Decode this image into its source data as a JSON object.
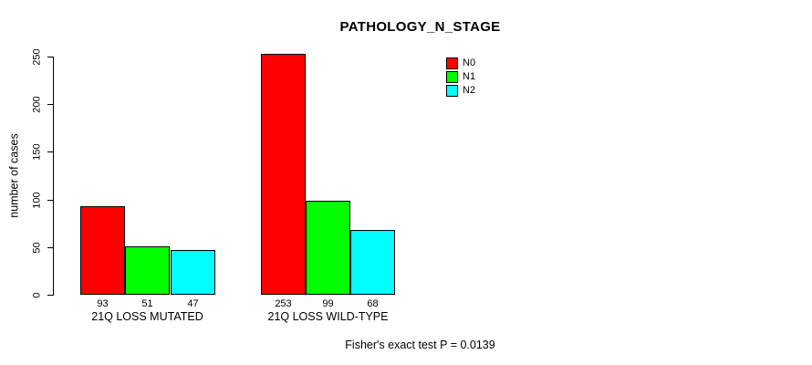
{
  "title": "PATHOLOGY_N_STAGE",
  "footnote": "Fisher's exact test P = 0.0139",
  "y_axis": {
    "label": "number of cases",
    "ticks": [
      0,
      50,
      100,
      150,
      200,
      250
    ]
  },
  "legend": {
    "position": "top-right-inside",
    "items": [
      {
        "label": "N0",
        "color": "#ff0000"
      },
      {
        "label": "N1",
        "color": "#00ff00"
      },
      {
        "label": "N2",
        "color": "#00ffff"
      }
    ]
  },
  "chart_data": {
    "type": "bar",
    "title": "PATHOLOGY_N_STAGE",
    "xlabel": "",
    "ylabel": "number of cases",
    "categories": [
      "21Q LOSS MUTATED",
      "21Q LOSS WILD-TYPE"
    ],
    "series": [
      {
        "name": "N0",
        "color": "#ff0000",
        "values": [
          93,
          253
        ]
      },
      {
        "name": "N1",
        "color": "#00ff00",
        "values": [
          51,
          99
        ]
      },
      {
        "name": "N2",
        "color": "#00ffff",
        "values": [
          47,
          68
        ]
      }
    ],
    "ylim": [
      0,
      250
    ],
    "yticks": [
      0,
      50,
      100,
      150,
      200,
      250
    ],
    "grid": false,
    "bar_value_labels": true,
    "legend_position": "top-right-inside",
    "annotation": "Fisher's exact test P = 0.0139"
  }
}
